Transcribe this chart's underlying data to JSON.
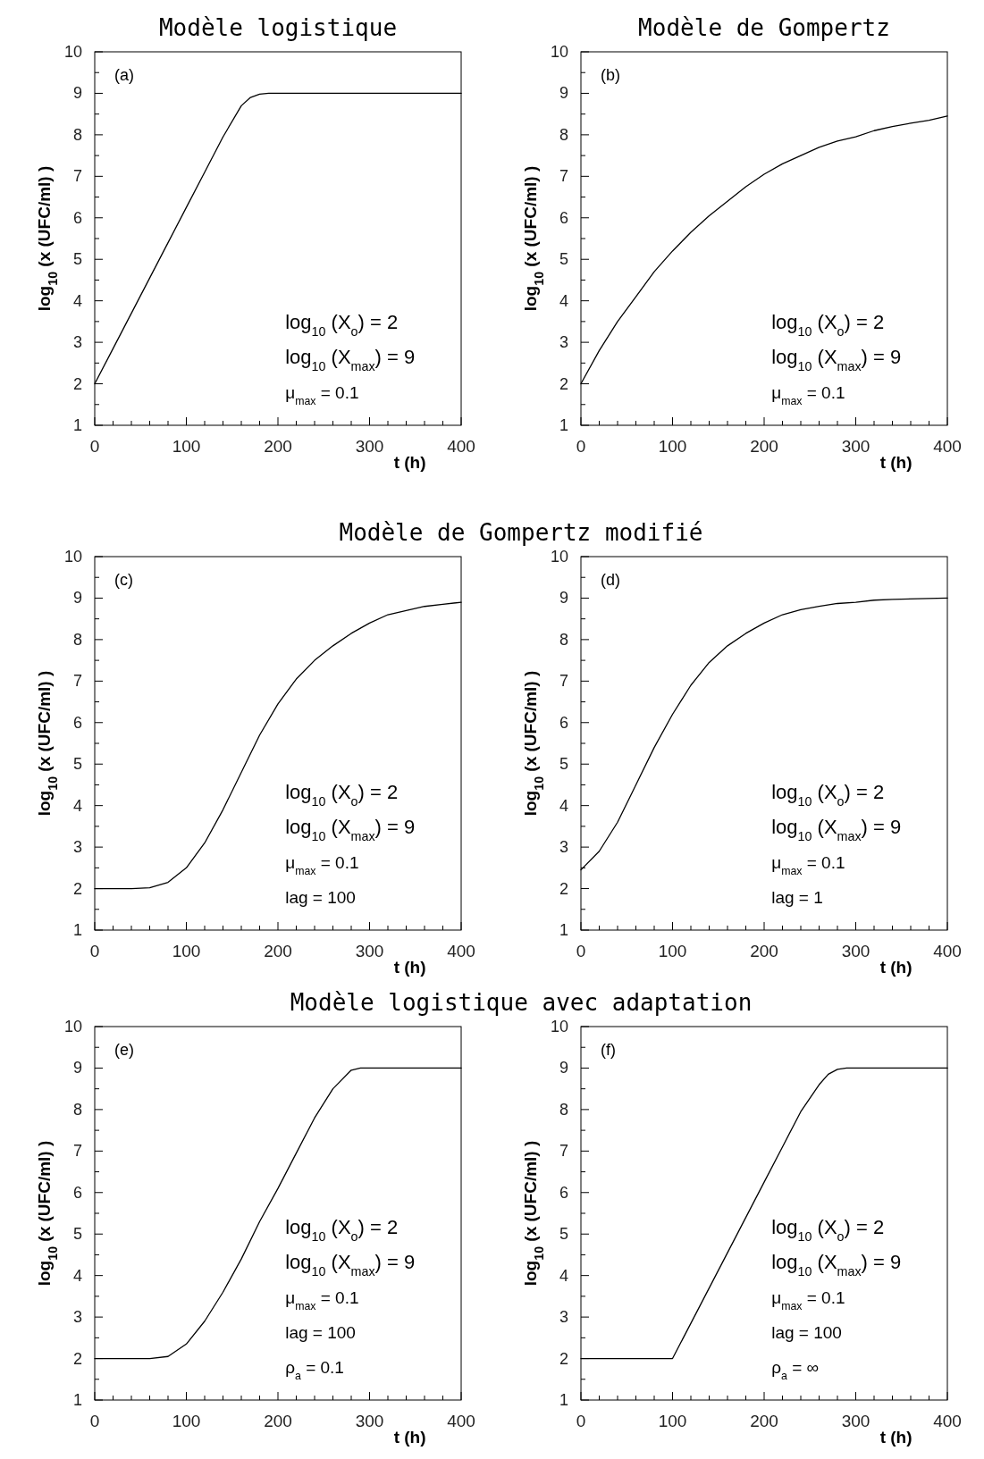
{
  "chart_data": [
    {
      "type": "line",
      "title": "Modèle logistique",
      "xlabel": "t (h)",
      "ylabel": "log$_{10}$ (x (UFC/ml) )",
      "annotations": [
        "(a)",
        "log$_{10}$ (X$_{o}$) = 2",
        "log$_{10}$ (X$_{max}$) = 9",
        "μ$_{max}$ = 0.1"
      ],
      "xlim": [
        0,
        400
      ],
      "ylim": [
        1,
        10
      ],
      "xticks": [
        0,
        {
          "value": 20,
          "label": null
        },
        {
          "value": 40,
          "label": null
        },
        {
          "value": 60,
          "label": null
        },
        {
          "value": 80,
          "label": null
        },
        100,
        {
          "value": 120,
          "label": null
        },
        {
          "value": 140,
          "label": null
        },
        {
          "value": 160,
          "label": null
        },
        {
          "value": 180,
          "label": null
        },
        200,
        {
          "value": 220,
          "label": null
        },
        {
          "value": 240,
          "label": null
        },
        {
          "value": 260,
          "label": null
        },
        {
          "value": 280,
          "label": null
        },
        300,
        {
          "value": 320,
          "label": null
        },
        {
          "value": 340,
          "label": null
        },
        {
          "value": 360,
          "label": null
        },
        {
          "value": 380,
          "label": null
        },
        400
      ],
      "yticks": [
        1,
        {
          "value": 1.5,
          "label": null
        },
        2,
        {
          "value": 2.5,
          "label": null
        },
        3,
        {
          "value": 3.5,
          "label": null
        },
        4,
        {
          "value": 4.5,
          "label": null
        },
        5,
        {
          "value": 5.5,
          "label": null
        },
        6,
        {
          "value": 6.5,
          "label": null
        },
        7,
        {
          "value": 7.5,
          "label": null
        },
        8,
        {
          "value": 8.5,
          "label": null
        },
        9,
        {
          "value": 9.5,
          "label": null
        },
        10
      ],
      "x": [
        0,
        20,
        40,
        60,
        80,
        100,
        120,
        140,
        160,
        170,
        180,
        190,
        400
      ],
      "series": [
        {
          "color": "#000000",
          "values": [
            2,
            2.85,
            3.7,
            4.55,
            5.4,
            6.25,
            7.1,
            7.95,
            8.7,
            8.9,
            8.98,
            9,
            9
          ]
        }
      ]
    },
    {
      "type": "line",
      "title": "Modèle de Gompertz",
      "xlabel": "t (h)",
      "ylabel": "log$_{10}$ (x (UFC/ml) )",
      "annotations": [
        "(b)",
        "log$_{10}$ (X$_{o}$) = 2",
        "log$_{10}$ (X$_{max}$) = 9",
        "μ$_{max}$ = 0.1"
      ],
      "xlim": [
        0,
        400
      ],
      "ylim": [
        1,
        10
      ],
      "xticks": [
        0,
        {
          "value": 20,
          "label": null
        },
        {
          "value": 40,
          "label": null
        },
        {
          "value": 60,
          "label": null
        },
        {
          "value": 80,
          "label": null
        },
        100,
        {
          "value": 120,
          "label": null
        },
        {
          "value": 140,
          "label": null
        },
        {
          "value": 160,
          "label": null
        },
        {
          "value": 180,
          "label": null
        },
        200,
        {
          "value": 220,
          "label": null
        },
        {
          "value": 240,
          "label": null
        },
        {
          "value": 260,
          "label": null
        },
        {
          "value": 280,
          "label": null
        },
        300,
        {
          "value": 320,
          "label": null
        },
        {
          "value": 340,
          "label": null
        },
        {
          "value": 360,
          "label": null
        },
        {
          "value": 380,
          "label": null
        },
        400
      ],
      "yticks": [
        1,
        {
          "value": 1.5,
          "label": null
        },
        2,
        {
          "value": 2.5,
          "label": null
        },
        3,
        {
          "value": 3.5,
          "label": null
        },
        4,
        {
          "value": 4.5,
          "label": null
        },
        5,
        {
          "value": 5.5,
          "label": null
        },
        6,
        {
          "value": 6.5,
          "label": null
        },
        7,
        {
          "value": 7.5,
          "label": null
        },
        8,
        {
          "value": 8.5,
          "label": null
        },
        9,
        {
          "value": 9.5,
          "label": null
        },
        10
      ],
      "x": [
        0,
        20,
        40,
        60,
        80,
        100,
        120,
        140,
        160,
        180,
        200,
        220,
        240,
        260,
        280,
        300,
        320,
        340,
        360,
        380,
        400
      ],
      "series": [
        {
          "color": "#000000",
          "values": [
            2,
            2.8,
            3.5,
            4.1,
            4.7,
            5.2,
            5.65,
            6.05,
            6.4,
            6.75,
            7.05,
            7.3,
            7.5,
            7.7,
            7.85,
            7.95,
            8.1,
            8.2,
            8.28,
            8.35,
            8.45
          ]
        }
      ]
    },
    {
      "type": "line",
      "title": "Modèle de Gompertz modifié",
      "xlabel": "t (h)",
      "ylabel": "log$_{10}$ (x (UFC/ml) )",
      "annotations": [
        "(c)",
        "log$_{10}$ (X$_{o}$) = 2",
        "log$_{10}$ (X$_{max}$) = 9",
        "μ$_{max}$ = 0.1",
        "lag = 100"
      ],
      "xlim": [
        0,
        400
      ],
      "ylim": [
        1,
        10
      ],
      "xticks": [
        0,
        {
          "value": 20,
          "label": null
        },
        {
          "value": 40,
          "label": null
        },
        {
          "value": 60,
          "label": null
        },
        {
          "value": 80,
          "label": null
        },
        100,
        {
          "value": 120,
          "label": null
        },
        {
          "value": 140,
          "label": null
        },
        {
          "value": 160,
          "label": null
        },
        {
          "value": 180,
          "label": null
        },
        200,
        {
          "value": 220,
          "label": null
        },
        {
          "value": 240,
          "label": null
        },
        {
          "value": 260,
          "label": null
        },
        {
          "value": 280,
          "label": null
        },
        300,
        {
          "value": 320,
          "label": null
        },
        {
          "value": 340,
          "label": null
        },
        {
          "value": 360,
          "label": null
        },
        {
          "value": 380,
          "label": null
        },
        400
      ],
      "yticks": [
        1,
        {
          "value": 1.5,
          "label": null
        },
        2,
        {
          "value": 2.5,
          "label": null
        },
        3,
        {
          "value": 3.5,
          "label": null
        },
        4,
        {
          "value": 4.5,
          "label": null
        },
        5,
        {
          "value": 5.5,
          "label": null
        },
        6,
        {
          "value": 6.5,
          "label": null
        },
        7,
        {
          "value": 7.5,
          "label": null
        },
        8,
        {
          "value": 8.5,
          "label": null
        },
        9,
        {
          "value": 9.5,
          "label": null
        },
        10
      ],
      "x": [
        0,
        40,
        60,
        80,
        100,
        120,
        140,
        160,
        180,
        200,
        220,
        240,
        260,
        280,
        300,
        320,
        340,
        360,
        380,
        400
      ],
      "series": [
        {
          "color": "#000000",
          "values": [
            2,
            2,
            2.02,
            2.15,
            2.5,
            3.1,
            3.9,
            4.8,
            5.7,
            6.45,
            7.05,
            7.5,
            7.85,
            8.15,
            8.4,
            8.6,
            8.7,
            8.8,
            8.85,
            8.9
          ]
        }
      ]
    },
    {
      "type": "line",
      "xlabel": "t (h)",
      "ylabel": "log$_{10}$ (x (UFC/ml) )",
      "annotations": [
        "(d)",
        "log$_{10}$ (X$_{o}$) = 2",
        "log$_{10}$ (X$_{max}$) = 9",
        "μ$_{max}$ = 0.1",
        "lag = 1"
      ],
      "xlim": [
        0,
        400
      ],
      "ylim": [
        1,
        10
      ],
      "xticks": [
        0,
        {
          "value": 20,
          "label": null
        },
        {
          "value": 40,
          "label": null
        },
        {
          "value": 60,
          "label": null
        },
        {
          "value": 80,
          "label": null
        },
        100,
        {
          "value": 120,
          "label": null
        },
        {
          "value": 140,
          "label": null
        },
        {
          "value": 160,
          "label": null
        },
        {
          "value": 180,
          "label": null
        },
        200,
        {
          "value": 220,
          "label": null
        },
        {
          "value": 240,
          "label": null
        },
        {
          "value": 260,
          "label": null
        },
        {
          "value": 280,
          "label": null
        },
        300,
        {
          "value": 320,
          "label": null
        },
        {
          "value": 340,
          "label": null
        },
        {
          "value": 360,
          "label": null
        },
        {
          "value": 380,
          "label": null
        },
        400
      ],
      "yticks": [
        1,
        {
          "value": 1.5,
          "label": null
        },
        2,
        {
          "value": 2.5,
          "label": null
        },
        3,
        {
          "value": 3.5,
          "label": null
        },
        4,
        {
          "value": 4.5,
          "label": null
        },
        5,
        {
          "value": 5.5,
          "label": null
        },
        6,
        {
          "value": 6.5,
          "label": null
        },
        7,
        {
          "value": 7.5,
          "label": null
        },
        8,
        {
          "value": 8.5,
          "label": null
        },
        9,
        {
          "value": 9.5,
          "label": null
        },
        10
      ],
      "x": [
        0,
        20,
        40,
        60,
        80,
        100,
        120,
        140,
        160,
        180,
        200,
        220,
        240,
        260,
        280,
        300,
        320,
        340,
        400
      ],
      "series": [
        {
          "color": "#000000",
          "values": [
            2.45,
            2.9,
            3.6,
            4.5,
            5.4,
            6.2,
            6.9,
            7.45,
            7.85,
            8.15,
            8.4,
            8.6,
            8.72,
            8.8,
            8.87,
            8.9,
            8.95,
            8.97,
            9
          ]
        }
      ]
    },
    {
      "type": "line",
      "title": "Modèle logistique avec adaptation",
      "xlabel": "t (h)",
      "ylabel": "log$_{10}$ (x (UFC/ml) )",
      "annotations": [
        "(e)",
        "log$_{10}$ (X$_{o}$) = 2",
        "log$_{10}$ (X$_{max}$) = 9",
        "μ$_{max}$ = 0.1",
        "lag = 100",
        "ρ$_{a}$ = 0.1"
      ],
      "xlim": [
        0,
        400
      ],
      "ylim": [
        1,
        10
      ],
      "xticks": [
        0,
        {
          "value": 20,
          "label": null
        },
        {
          "value": 40,
          "label": null
        },
        {
          "value": 60,
          "label": null
        },
        {
          "value": 80,
          "label": null
        },
        100,
        {
          "value": 120,
          "label": null
        },
        {
          "value": 140,
          "label": null
        },
        {
          "value": 160,
          "label": null
        },
        {
          "value": 180,
          "label": null
        },
        200,
        {
          "value": 220,
          "label": null
        },
        {
          "value": 240,
          "label": null
        },
        {
          "value": 260,
          "label": null
        },
        {
          "value": 280,
          "label": null
        },
        300,
        {
          "value": 320,
          "label": null
        },
        {
          "value": 340,
          "label": null
        },
        {
          "value": 360,
          "label": null
        },
        {
          "value": 380,
          "label": null
        },
        400
      ],
      "yticks": [
        1,
        {
          "value": 1.5,
          "label": null
        },
        2,
        {
          "value": 2.5,
          "label": null
        },
        3,
        {
          "value": 3.5,
          "label": null
        },
        4,
        {
          "value": 4.5,
          "label": null
        },
        5,
        {
          "value": 5.5,
          "label": null
        },
        6,
        {
          "value": 6.5,
          "label": null
        },
        7,
        {
          "value": 7.5,
          "label": null
        },
        8,
        {
          "value": 8.5,
          "label": null
        },
        9,
        {
          "value": 9.5,
          "label": null
        },
        10
      ],
      "x": [
        0,
        60,
        80,
        100,
        120,
        140,
        160,
        180,
        200,
        220,
        240,
        260,
        280,
        290,
        400
      ],
      "series": [
        {
          "color": "#000000",
          "values": [
            2,
            2,
            2.05,
            2.35,
            2.9,
            3.6,
            4.4,
            5.3,
            6.1,
            6.95,
            7.8,
            8.5,
            8.95,
            9,
            9
          ]
        }
      ]
    },
    {
      "type": "line",
      "xlabel": "t (h)",
      "ylabel": "log$_{10}$ (x (UFC/ml) )",
      "annotations": [
        "(f)",
        "log$_{10}$ (X$_{o}$) = 2",
        "log$_{10}$ (X$_{max}$) = 9",
        "μ$_{max}$ = 0.1",
        "lag = 100",
        "ρ$_{a}$ = ∞"
      ],
      "xlim": [
        0,
        400
      ],
      "ylim": [
        1,
        10
      ],
      "xticks": [
        0,
        {
          "value": 20,
          "label": null
        },
        {
          "value": 40,
          "label": null
        },
        {
          "value": 60,
          "label": null
        },
        {
          "value": 80,
          "label": null
        },
        100,
        {
          "value": 120,
          "label": null
        },
        {
          "value": 140,
          "label": null
        },
        {
          "value": 160,
          "label": null
        },
        {
          "value": 180,
          "label": null
        },
        200,
        {
          "value": 220,
          "label": null
        },
        {
          "value": 240,
          "label": null
        },
        {
          "value": 260,
          "label": null
        },
        {
          "value": 280,
          "label": null
        },
        300,
        {
          "value": 320,
          "label": null
        },
        {
          "value": 340,
          "label": null
        },
        {
          "value": 360,
          "label": null
        },
        {
          "value": 380,
          "label": null
        },
        400
      ],
      "yticks": [
        1,
        {
          "value": 1.5,
          "label": null
        },
        2,
        {
          "value": 2.5,
          "label": null
        },
        3,
        {
          "value": 3.5,
          "label": null
        },
        4,
        {
          "value": 4.5,
          "label": null
        },
        5,
        {
          "value": 5.5,
          "label": null
        },
        6,
        {
          "value": 6.5,
          "label": null
        },
        7,
        {
          "value": 7.5,
          "label": null
        },
        8,
        {
          "value": 8.5,
          "label": null
        },
        9,
        {
          "value": 9.5,
          "label": null
        },
        10
      ],
      "x": [
        0,
        100,
        120,
        140,
        160,
        180,
        200,
        220,
        240,
        260,
        270,
        280,
        290,
        400
      ],
      "series": [
        {
          "color": "#000000",
          "values": [
            2,
            2,
            2.85,
            3.7,
            4.55,
            5.4,
            6.25,
            7.1,
            7.95,
            8.6,
            8.85,
            8.97,
            9,
            9
          ]
        }
      ]
    }
  ]
}
